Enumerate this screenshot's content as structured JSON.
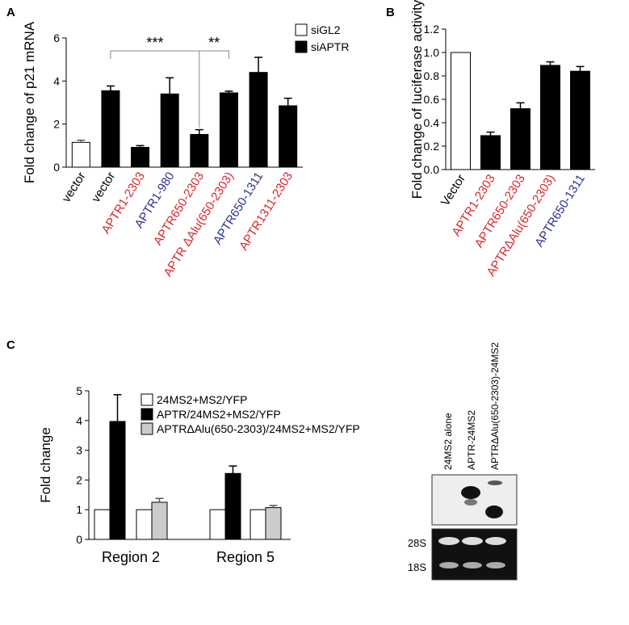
{
  "panel_labels": [
    "A",
    "B",
    "C"
  ],
  "chart_data": [
    {
      "type": "bar",
      "y_label": "Fold change of p21 mRNA",
      "categories": [
        "vector",
        "vector",
        "APTR1-2303",
        "APTR1-980",
        "APTR650-2303",
        "APTR ΔAlu(650-2303)",
        "APTR650-1311",
        "APTR1311-2303"
      ],
      "category_colors": [
        "#000000",
        "#000000",
        "#d9262b",
        "#2e3192",
        "#d9262b",
        "#d9262b",
        "#2e3192",
        "#d9262b"
      ],
      "series": [
        {
          "name": "siGL2",
          "color": "#ffffff",
          "values": [
            1.15,
            null,
            null,
            null,
            null,
            null,
            null,
            null
          ],
          "errors": [
            0.1,
            null,
            null,
            null,
            null,
            null,
            null,
            null
          ]
        },
        {
          "name": "siAPTR",
          "color": "#000000",
          "values": [
            null,
            3.55,
            0.92,
            3.4,
            1.52,
            3.45,
            4.4,
            2.85
          ],
          "errors": [
            null,
            0.22,
            0.08,
            0.75,
            0.22,
            0.08,
            0.7,
            0.35
          ]
        }
      ],
      "annotations": [
        "***",
        "**"
      ],
      "ylim": [
        0,
        6
      ],
      "yticks": [
        0,
        2,
        4,
        6
      ]
    },
    {
      "type": "bar",
      "y_label": "Fold change of luciferase activity",
      "categories": [
        "Vector",
        "APTR1-2303",
        "APTR650-2303",
        "APTRΔAlu(650-2303)",
        "APTR650-1311"
      ],
      "category_colors": [
        "#000000",
        "#d9262b",
        "#d9262b",
        "#d9262b",
        "#2e3192"
      ],
      "values": [
        1.0,
        0.29,
        0.52,
        0.89,
        0.84
      ],
      "errors": [
        null,
        0.03,
        0.05,
        0.03,
        0.04
      ],
      "colors": [
        "#ffffff",
        "#000000",
        "#000000",
        "#000000",
        "#000000"
      ],
      "ylim": [
        0,
        1.2
      ],
      "yticks": [
        {
          "value": 0,
          "label": "0.0"
        },
        0.2,
        0.4,
        0.6,
        0.8,
        {
          "value": 1,
          "label": "1.0"
        },
        1.2
      ]
    },
    {
      "type": "bar",
      "y_label": "Fold change",
      "categories": [
        "Region 2",
        null,
        "Region 5",
        null
      ],
      "series": [
        {
          "name": "24MS2+MS2/YFP",
          "color": "#ffffff",
          "values": [
            1,
            1,
            1,
            1
          ],
          "errors": [
            null,
            null,
            null,
            null
          ]
        },
        {
          "name": "APTR/24MS2+MS2/YFP",
          "color": "#000000",
          "values": [
            3.97,
            null,
            2.22,
            null
          ],
          "errors": [
            0.9,
            null,
            0.25,
            null
          ]
        },
        {
          "name": "APTRΔAlu(650-2303)/24MS2+MS2/YFP",
          "color": "#cccccc",
          "values": [
            null,
            1.25,
            null,
            1.07
          ],
          "errors": [
            null,
            0.13,
            null,
            0.07
          ]
        }
      ],
      "ylim": [
        0,
        5
      ],
      "yticks": [
        0,
        1,
        2,
        3,
        4,
        5
      ]
    }
  ],
  "gel": {
    "lanes": [
      "24MS2 alone",
      "APTR-24MS2",
      "APTRΔAlu(650-2303)-24MS2"
    ],
    "markers": [
      "28S",
      "18S"
    ]
  }
}
